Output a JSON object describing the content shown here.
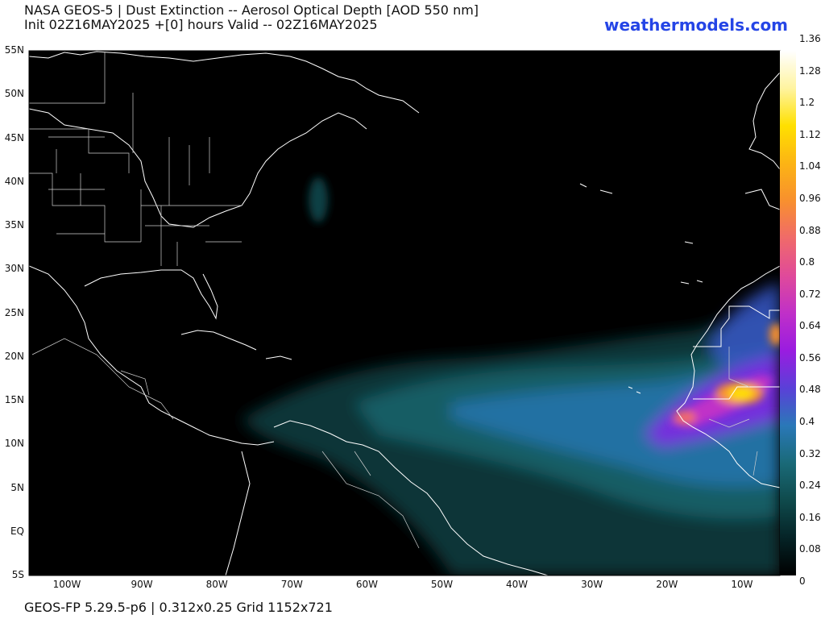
{
  "header": {
    "title_line1": "NASA GEOS-5 | Dust Extinction -- Aerosol Optical Depth [AOD 550 nm]",
    "title_line2": "Init 02Z16MAY2025 +[0] hours Valid -- 02Z16MAY2025",
    "brand": "weathermodels.com"
  },
  "footer": {
    "text": "GEOS-FP 5.29.5-p6 | 0.312x0.25 Grid 1152x721"
  },
  "map": {
    "region": "North Atlantic",
    "product": "dust-aod",
    "lat_labels": [
      "55N",
      "50N",
      "45N",
      "40N",
      "35N",
      "30N",
      "25N",
      "20N",
      "15N",
      "10N",
      "5N",
      "EQ",
      "5S"
    ],
    "lon_labels": [
      "100W",
      "90W",
      "80W",
      "70W",
      "60W",
      "50W",
      "40W",
      "30W",
      "20W",
      "10W"
    ]
  },
  "colorbar": {
    "labels": [
      "1.36",
      "1.28",
      "1.2",
      "1.12",
      "1.04",
      "0.96",
      "0.88",
      "0.8",
      "0.72",
      "0.64",
      "0.56",
      "0.48",
      "0.4",
      "0.32",
      "0.24",
      "0.16",
      "0.08",
      "0"
    ],
    "colors": [
      "#000000",
      "#052326",
      "#0f4a4c",
      "#1a6a78",
      "#2a78b8",
      "#5a40d8",
      "#9a1ce0",
      "#c030c8",
      "#e04a9a",
      "#f06a6a",
      "#f8902e",
      "#fcb414",
      "#ffe000",
      "#fff4a0",
      "#ffffff"
    ]
  }
}
